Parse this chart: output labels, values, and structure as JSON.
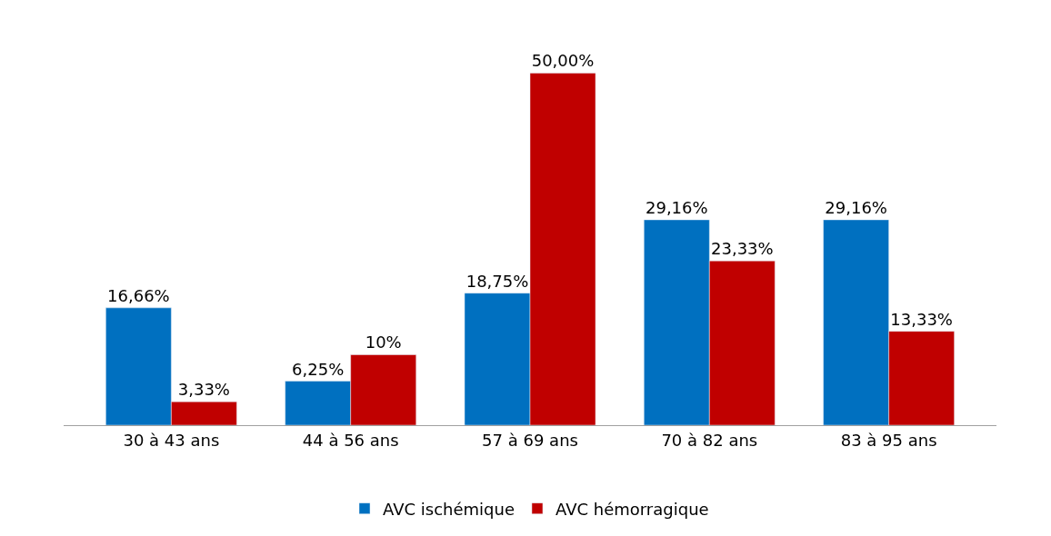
{
  "chart_data": {
    "type": "bar",
    "categories": [
      "30 à 43 ans",
      "44 à 56 ans",
      "57 à 69 ans",
      "70 à 82 ans",
      "83 à 95 ans"
    ],
    "series": [
      {
        "name": "AVC ischémique",
        "color": "#0070c0",
        "values": [
          16.66,
          6.25,
          18.75,
          29.16,
          29.16
        ],
        "value_labels": [
          "16,66%",
          "6,25%",
          "18,75%",
          "29,16%",
          "29,16%"
        ]
      },
      {
        "name": "AVC hémorragique",
        "color": "#c00000",
        "values": [
          3.33,
          10,
          50,
          23.33,
          13.33
        ],
        "value_labels": [
          "3,33%",
          "10%",
          "50,00%",
          "23,33%",
          "13,33%"
        ]
      }
    ],
    "legend": "bottom"
  }
}
